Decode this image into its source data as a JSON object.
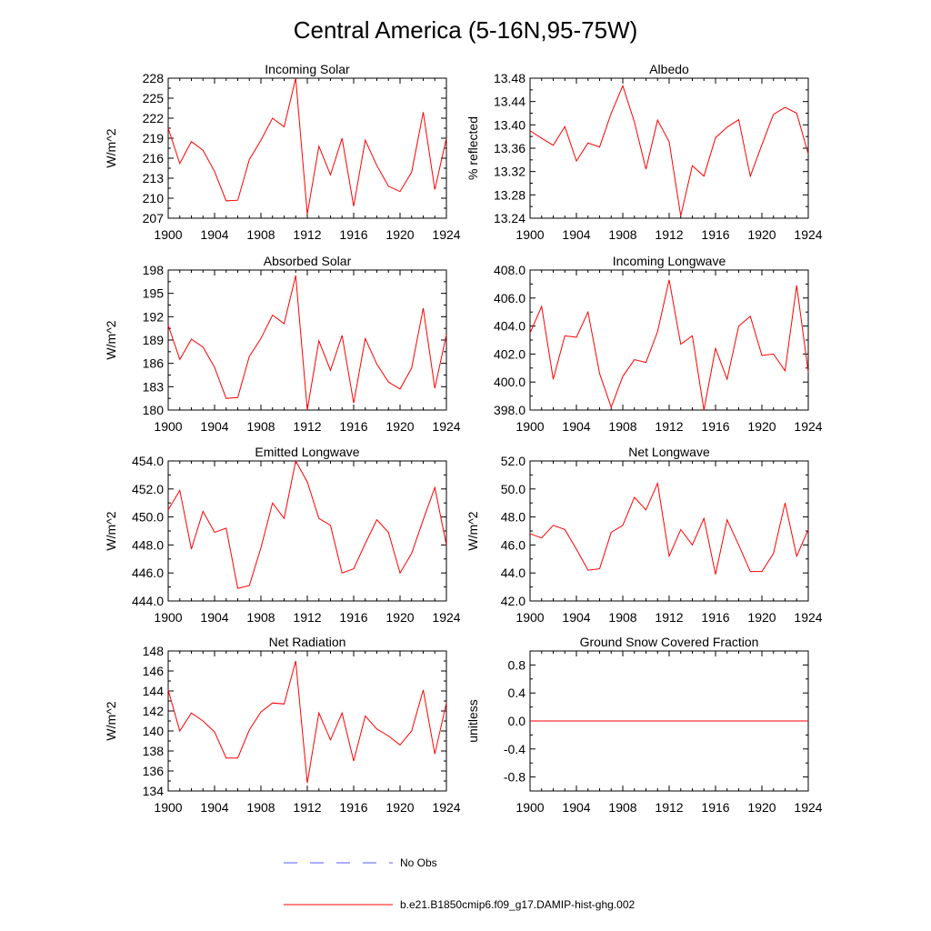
{
  "figure": {
    "title": "Central America (5-16N,95-75W)"
  },
  "legend": {
    "entries": [
      {
        "label": "No Obs",
        "color": "#5a5aff",
        "dash": "dashed"
      },
      {
        "label": "b.e21.B1850cmip6.f09_g17.DAMIP-hist-ghg.002",
        "color": "#ff0000",
        "dash": "solid"
      }
    ]
  },
  "chart_data": [
    {
      "type": "line",
      "title": "Incoming Solar",
      "ylabel": "W/m^2",
      "xlim": [
        1900,
        1924
      ],
      "ylim": [
        207,
        228
      ],
      "yticks": [
        "207",
        "210",
        "213",
        "216",
        "219",
        "222",
        "225",
        "228"
      ],
      "xticks": [
        "1900",
        "1904",
        "1908",
        "1912",
        "1916",
        "1920",
        "1924"
      ],
      "x": [
        1900,
        1901,
        1902,
        1903,
        1904,
        1905,
        1906,
        1907,
        1908,
        1909,
        1910,
        1911,
        1912,
        1913,
        1914,
        1915,
        1916,
        1917,
        1918,
        1919,
        1920,
        1921,
        1922,
        1923,
        1924
      ],
      "series": [
        {
          "color": "#ff0000",
          "values": [
            220.5,
            215.2,
            218.5,
            217.2,
            214.0,
            209.6,
            209.7,
            215.8,
            218.7,
            222.0,
            220.7,
            228.0,
            207.6,
            217.8,
            213.5,
            219.0,
            208.8,
            218.7,
            214.9,
            211.8,
            211.0,
            213.9,
            222.9,
            211.3,
            219.0
          ]
        }
      ]
    },
    {
      "type": "line",
      "title": "Albedo",
      "ylabel": "% reflected",
      "xlim": [
        1900,
        1924
      ],
      "ylim": [
        13.24,
        13.48
      ],
      "yticks": [
        "13.24",
        "13.28",
        "13.32",
        "13.36",
        "13.40",
        "13.44",
        "13.48"
      ],
      "xticks": [
        "1900",
        "1904",
        "1908",
        "1912",
        "1916",
        "1920",
        "1924"
      ],
      "x": [
        1900,
        1901,
        1902,
        1903,
        1904,
        1905,
        1906,
        1907,
        1908,
        1909,
        1910,
        1911,
        1912,
        1913,
        1914,
        1915,
        1916,
        1917,
        1918,
        1919,
        1920,
        1921,
        1922,
        1923,
        1924
      ],
      "series": [
        {
          "color": "#ff0000",
          "values": [
            13.39,
            13.377,
            13.365,
            13.397,
            13.338,
            13.369,
            13.362,
            13.42,
            13.467,
            13.405,
            13.324,
            13.408,
            13.371,
            13.244,
            13.33,
            13.312,
            13.378,
            13.396,
            13.409,
            13.312,
            13.366,
            13.418,
            13.43,
            13.42,
            13.35
          ]
        }
      ]
    },
    {
      "type": "line",
      "title": "Absorbed Solar",
      "ylabel": "W/m^2",
      "xlim": [
        1900,
        1924
      ],
      "ylim": [
        180,
        198
      ],
      "yticks": [
        "180",
        "183",
        "186",
        "189",
        "192",
        "195",
        "198"
      ],
      "xticks": [
        "1900",
        "1904",
        "1908",
        "1912",
        "1916",
        "1920",
        "1924"
      ],
      "x": [
        1900,
        1901,
        1902,
        1903,
        1904,
        1905,
        1906,
        1907,
        1908,
        1909,
        1910,
        1911,
        1912,
        1913,
        1914,
        1915,
        1916,
        1917,
        1918,
        1919,
        1920,
        1921,
        1922,
        1923,
        1924
      ],
      "series": [
        {
          "color": "#ff0000",
          "values": [
            190.9,
            186.5,
            189.1,
            188.1,
            185.5,
            181.5,
            181.6,
            186.9,
            189.2,
            192.2,
            191.1,
            197.3,
            180.0,
            188.9,
            185.1,
            189.6,
            180.9,
            189.2,
            185.9,
            183.6,
            182.7,
            185.4,
            193.1,
            182.8,
            189.7
          ]
        }
      ]
    },
    {
      "type": "line",
      "title": "Incoming Longwave",
      "ylabel": "",
      "xlim": [
        1900,
        1924
      ],
      "ylim": [
        398.0,
        408.0
      ],
      "yticks": [
        "398.0",
        "400.0",
        "402.0",
        "404.0",
        "406.0",
        "408.0"
      ],
      "xticks": [
        "1900",
        "1904",
        "1908",
        "1912",
        "1916",
        "1920",
        "1924"
      ],
      "x": [
        1900,
        1901,
        1902,
        1903,
        1904,
        1905,
        1906,
        1907,
        1908,
        1909,
        1910,
        1911,
        1912,
        1913,
        1914,
        1915,
        1916,
        1917,
        1918,
        1919,
        1920,
        1921,
        1922,
        1923,
        1924
      ],
      "series": [
        {
          "color": "#ff0000",
          "values": [
            403.5,
            405.4,
            400.2,
            403.3,
            403.2,
            405.0,
            400.6,
            398.2,
            400.4,
            401.6,
            401.4,
            403.6,
            407.3,
            402.7,
            403.3,
            398.0,
            402.4,
            400.2,
            404.0,
            404.7,
            401.9,
            402.0,
            400.8,
            406.9,
            400.7
          ]
        }
      ]
    },
    {
      "type": "line",
      "title": "Emitted Longwave",
      "ylabel": "W/m^2",
      "xlim": [
        1900,
        1924
      ],
      "ylim": [
        444.0,
        454.0
      ],
      "yticks": [
        "444.0",
        "446.0",
        "448.0",
        "450.0",
        "452.0",
        "454.0"
      ],
      "xticks": [
        "1900",
        "1904",
        "1908",
        "1912",
        "1916",
        "1920",
        "1924"
      ],
      "x": [
        1900,
        1901,
        1902,
        1903,
        1904,
        1905,
        1906,
        1907,
        1908,
        1909,
        1910,
        1911,
        1912,
        1913,
        1914,
        1915,
        1916,
        1917,
        1918,
        1919,
        1920,
        1921,
        1922,
        1923,
        1924
      ],
      "series": [
        {
          "color": "#ff0000",
          "values": [
            450.5,
            451.9,
            447.7,
            450.4,
            448.9,
            449.2,
            444.9,
            445.1,
            447.8,
            451.0,
            449.9,
            454.0,
            452.5,
            449.9,
            449.4,
            446.0,
            446.3,
            448.1,
            449.8,
            448.9,
            446.0,
            447.4,
            449.8,
            452.1,
            448.0
          ]
        }
      ]
    },
    {
      "type": "line",
      "title": "Net Longwave",
      "ylabel": "W/m^2",
      "xlim": [
        1900,
        1924
      ],
      "ylim": [
        42.0,
        52.0
      ],
      "yticks": [
        "42.0",
        "44.0",
        "46.0",
        "48.0",
        "50.0",
        "52.0"
      ],
      "xticks": [
        "1900",
        "1904",
        "1908",
        "1912",
        "1916",
        "1920",
        "1924"
      ],
      "x": [
        1900,
        1901,
        1902,
        1903,
        1904,
        1905,
        1906,
        1907,
        1908,
        1909,
        1910,
        1911,
        1912,
        1913,
        1914,
        1915,
        1916,
        1917,
        1918,
        1919,
        1920,
        1921,
        1922,
        1923,
        1924
      ],
      "series": [
        {
          "color": "#ff0000",
          "values": [
            46.8,
            46.5,
            47.4,
            47.1,
            45.7,
            44.2,
            44.3,
            46.9,
            47.4,
            49.4,
            48.5,
            50.4,
            45.2,
            47.1,
            46.0,
            47.9,
            43.9,
            47.8,
            46.0,
            44.1,
            44.1,
            45.4,
            49.0,
            45.2,
            47.1
          ]
        }
      ]
    },
    {
      "type": "line",
      "title": "Net Radiation",
      "ylabel": "W/m^2",
      "xlim": [
        1900,
        1924
      ],
      "ylim": [
        134,
        148
      ],
      "yticks": [
        "134",
        "136",
        "138",
        "140",
        "142",
        "144",
        "146",
        "148"
      ],
      "xticks": [
        "1900",
        "1904",
        "1908",
        "1912",
        "1916",
        "1920",
        "1924"
      ],
      "x": [
        1900,
        1901,
        1902,
        1903,
        1904,
        1905,
        1906,
        1907,
        1908,
        1909,
        1910,
        1911,
        1912,
        1913,
        1914,
        1915,
        1916,
        1917,
        1918,
        1919,
        1920,
        1921,
        1922,
        1923,
        1924
      ],
      "series": [
        {
          "color": "#ff0000",
          "values": [
            144.1,
            140.0,
            141.8,
            141.0,
            139.9,
            137.3,
            137.3,
            140.1,
            141.9,
            142.8,
            142.7,
            147.0,
            134.8,
            141.8,
            139.1,
            141.8,
            137.0,
            141.5,
            140.2,
            139.5,
            138.6,
            140.0,
            144.1,
            137.7,
            142.8
          ]
        }
      ]
    },
    {
      "type": "line",
      "title": "Ground Snow Covered Fraction",
      "ylabel": "unitless",
      "xlim": [
        1900,
        1924
      ],
      "ylim": [
        -1.0,
        1.0
      ],
      "yticks": [
        "-0.8",
        "-0.4",
        "0.0",
        "0.4",
        "0.8"
      ],
      "xticks": [
        "1900",
        "1904",
        "1908",
        "1912",
        "1916",
        "1920",
        "1924"
      ],
      "x": [
        1900,
        1924
      ],
      "series": [
        {
          "color": "#ff0000",
          "values": [
            0.0,
            0.0
          ]
        }
      ]
    }
  ]
}
